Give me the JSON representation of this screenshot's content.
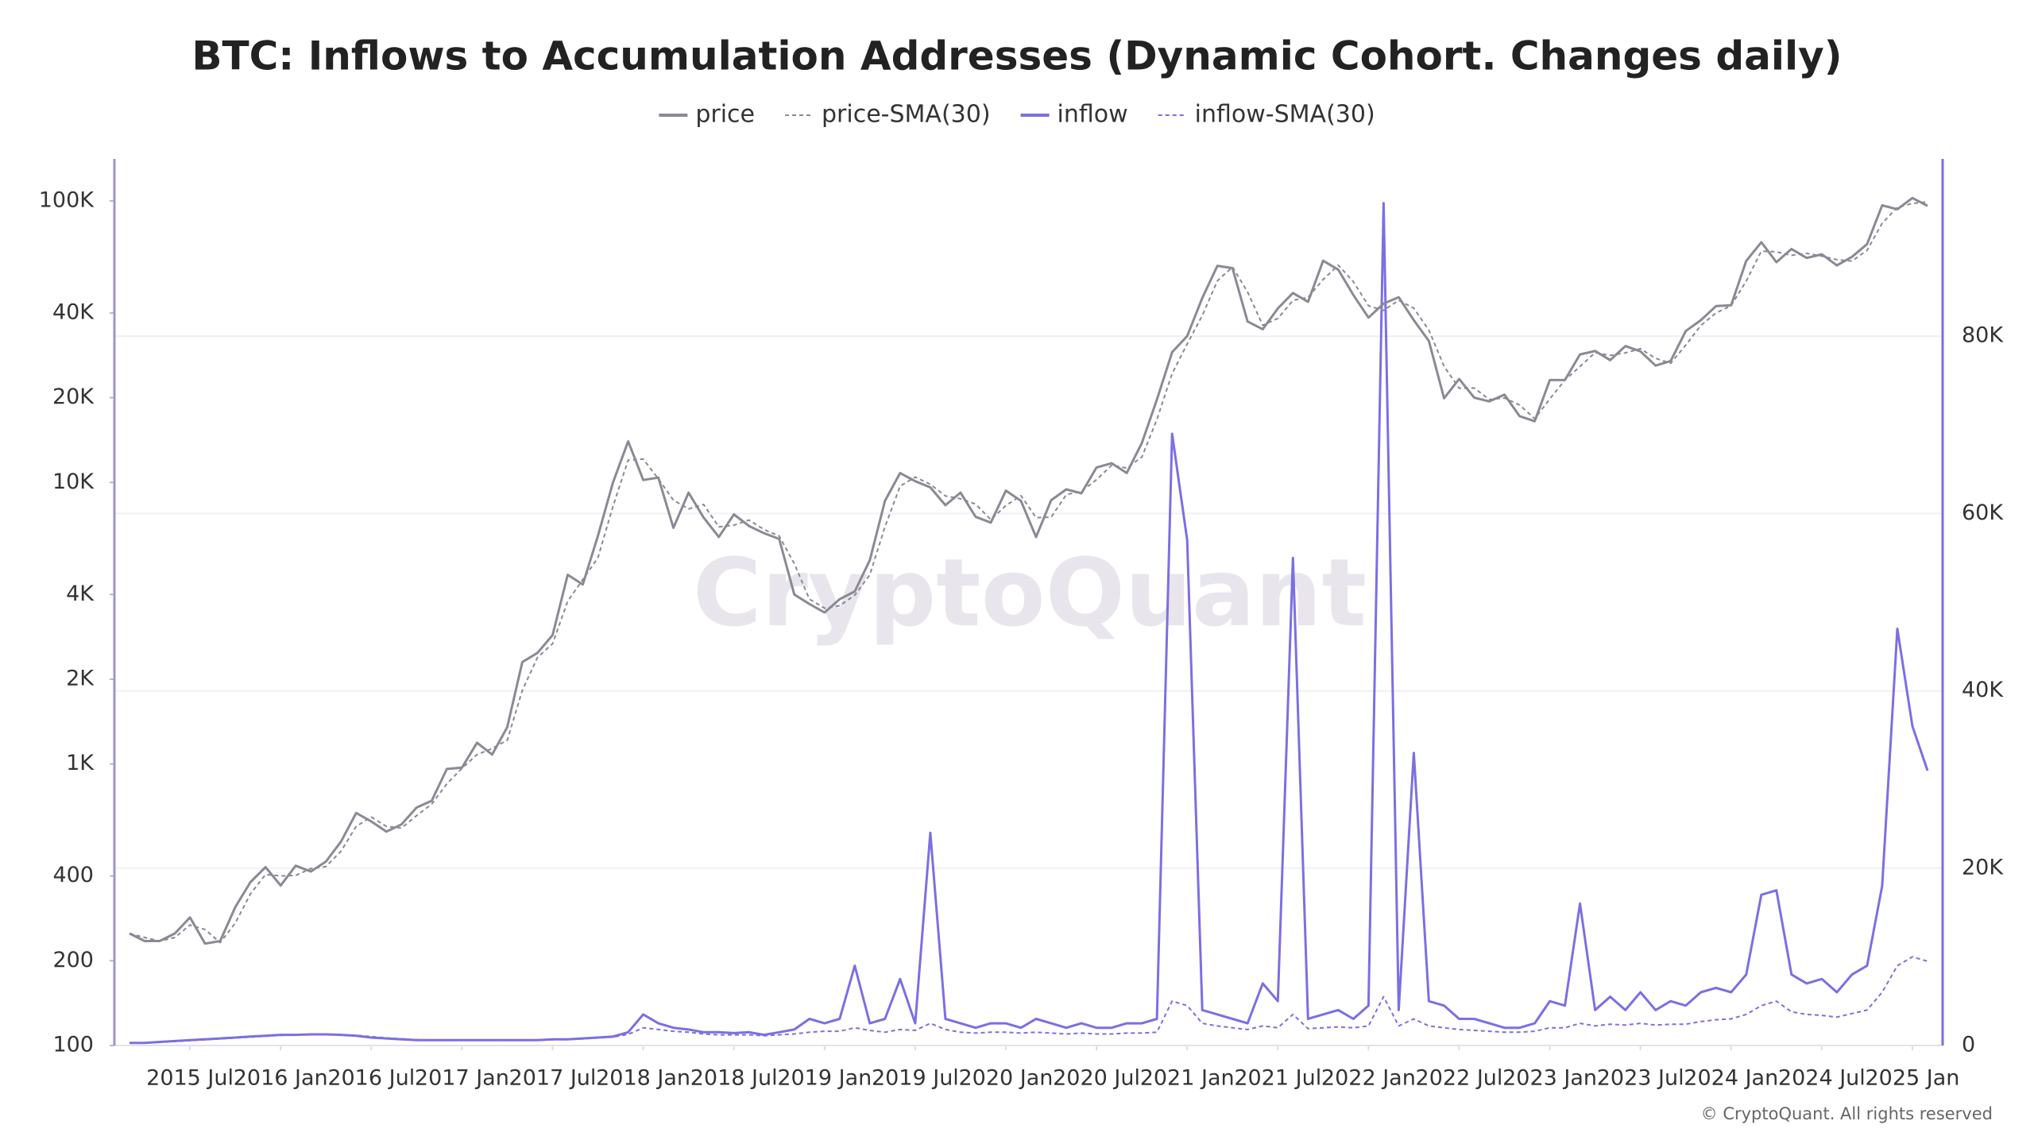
{
  "chart_data": {
    "type": "line",
    "title": "BTC: Inflows to Accumulation Addresses (Dynamic Cohort. Changes daily)",
    "watermark": "CryptoQuant",
    "footer": "© CryptoQuant. All rights reserved",
    "x": [
      "2015-03",
      "2015-04",
      "2015-05",
      "2015-06",
      "2015-07",
      "2015-08",
      "2015-09",
      "2015-10",
      "2015-11",
      "2015-12",
      "2016-01",
      "2016-02",
      "2016-03",
      "2016-04",
      "2016-05",
      "2016-06",
      "2016-07",
      "2016-08",
      "2016-09",
      "2016-10",
      "2016-11",
      "2016-12",
      "2017-01",
      "2017-02",
      "2017-03",
      "2017-04",
      "2017-05",
      "2017-06",
      "2017-07",
      "2017-08",
      "2017-09",
      "2017-10",
      "2017-11",
      "2017-12",
      "2018-01",
      "2018-02",
      "2018-03",
      "2018-04",
      "2018-05",
      "2018-06",
      "2018-07",
      "2018-08",
      "2018-09",
      "2018-10",
      "2018-11",
      "2018-12",
      "2019-01",
      "2019-02",
      "2019-03",
      "2019-04",
      "2019-05",
      "2019-06",
      "2019-07",
      "2019-08",
      "2019-09",
      "2019-10",
      "2019-11",
      "2019-12",
      "2020-01",
      "2020-02",
      "2020-03",
      "2020-04",
      "2020-05",
      "2020-06",
      "2020-07",
      "2020-08",
      "2020-09",
      "2020-10",
      "2020-11",
      "2020-12",
      "2021-01",
      "2021-02",
      "2021-03",
      "2021-04",
      "2021-05",
      "2021-06",
      "2021-07",
      "2021-08",
      "2021-09",
      "2021-10",
      "2021-11",
      "2021-12",
      "2022-01",
      "2022-02",
      "2022-03",
      "2022-04",
      "2022-05",
      "2022-06",
      "2022-07",
      "2022-08",
      "2022-09",
      "2022-10",
      "2022-11",
      "2022-12",
      "2023-01",
      "2023-02",
      "2023-03",
      "2023-04",
      "2023-05",
      "2023-06",
      "2023-07",
      "2023-08",
      "2023-09",
      "2023-10",
      "2023-11",
      "2023-12",
      "2024-01",
      "2024-02",
      "2024-03",
      "2024-04",
      "2024-05",
      "2024-06",
      "2024-07",
      "2024-08",
      "2024-09",
      "2024-10",
      "2024-11",
      "2024-12",
      "2025-01",
      "2025-02"
    ],
    "xlim": [
      "2015-02",
      "2025-03"
    ],
    "xticks": [
      {
        "value": "2015-07",
        "label": "2015 Jul"
      },
      {
        "value": "2016-01",
        "label": "2016 Jan"
      },
      {
        "value": "2016-07",
        "label": "2016 Jul"
      },
      {
        "value": "2017-01",
        "label": "2017 Jan"
      },
      {
        "value": "2017-07",
        "label": "2017 Jul"
      },
      {
        "value": "2018-01",
        "label": "2018 Jan"
      },
      {
        "value": "2018-07",
        "label": "2018 Jul"
      },
      {
        "value": "2019-01",
        "label": "2019 Jan"
      },
      {
        "value": "2019-07",
        "label": "2019 Jul"
      },
      {
        "value": "2020-01",
        "label": "2020 Jan"
      },
      {
        "value": "2020-07",
        "label": "2020 Jul"
      },
      {
        "value": "2021-01",
        "label": "2021 Jan"
      },
      {
        "value": "2021-07",
        "label": "2021 Jul"
      },
      {
        "value": "2022-01",
        "label": "2022 Jan"
      },
      {
        "value": "2022-07",
        "label": "2022 Jul"
      },
      {
        "value": "2023-01",
        "label": "2023 Jan"
      },
      {
        "value": "2023-07",
        "label": "2023 Jul"
      },
      {
        "value": "2024-01",
        "label": "2024 Jan"
      },
      {
        "value": "2024-07",
        "label": "2024 Jul"
      },
      {
        "value": "2025-01",
        "label": "2025 Jan"
      }
    ],
    "ylog": true,
    "ylim": [
      100,
      141000
    ],
    "yticks": [
      100,
      200,
      400,
      {
        "value": 1000,
        "label": "1K"
      },
      {
        "value": 2000,
        "label": "2K"
      },
      {
        "value": 4000,
        "label": "4K"
      },
      {
        "value": 10000,
        "label": "10K"
      },
      {
        "value": 20000,
        "label": "20K"
      },
      {
        "value": 40000,
        "label": "40K"
      },
      {
        "value": 100000,
        "label": "100K"
      }
    ],
    "y2lim": [
      0,
      100000
    ],
    "y2ticks": [
      0,
      {
        "value": 20000,
        "label": "20K"
      },
      {
        "value": 40000,
        "label": "40K"
      },
      {
        "value": 60000,
        "label": "60K"
      },
      {
        "value": 80000,
        "label": "80K"
      }
    ],
    "grid": true,
    "legend": "top",
    "series": [
      {
        "name": "price",
        "color": "#8a8994",
        "dash": false,
        "values": [
          250,
          235,
          235,
          250,
          285,
          230,
          235,
          310,
          380,
          430,
          370,
          435,
          415,
          450,
          530,
          670,
          625,
          575,
          610,
          700,
          740,
          960,
          970,
          1190,
          1080,
          1350,
          2300,
          2480,
          2870,
          4700,
          4340,
          6450,
          10000,
          14000,
          10200,
          10400,
          6900,
          9200,
          7500,
          6400,
          7700,
          7000,
          6600,
          6300,
          4000,
          3700,
          3450,
          3850,
          4100,
          5300,
          8600,
          10800,
          10100,
          9600,
          8300,
          9200,
          7550,
          7200,
          9350,
          8600,
          6400,
          8650,
          9450,
          9150,
          11300,
          11700,
          10800,
          13800,
          19700,
          29000,
          33100,
          45200,
          58800,
          57700,
          37300,
          35000,
          41500,
          47100,
          43800,
          61300,
          57000,
          46300,
          38500,
          43200,
          45500,
          37700,
          31800,
          19900,
          23300,
          20000,
          19400,
          20500,
          17200,
          16500,
          23100,
          23100,
          28500,
          29300,
          27200,
          30500,
          29200,
          26000,
          27000,
          34500,
          37700,
          42300,
          42600,
          61200,
          71300,
          60600,
          67500,
          62700,
          64600,
          59000,
          63300,
          70200,
          96400,
          93400,
          102400,
          96000
        ]
      },
      {
        "name": "price-SMA(30)",
        "color": "#8a8994",
        "dash": true,
        "values": [
          250,
          242,
          235,
          242,
          268,
          258,
          232,
          272,
          345,
          405,
          400,
          402,
          425,
          432,
          490,
          600,
          648,
          600,
          592,
          655,
          720,
          850,
          965,
          1080,
          1135,
          1215,
          1825,
          2390,
          2675,
          3785,
          4520,
          5395,
          8225,
          12000,
          12100,
          10300,
          8650,
          8050,
          8350,
          6950,
          7050,
          7350,
          6800,
          6450,
          5150,
          3850,
          3575,
          3650,
          3975,
          4700,
          6950,
          9700,
          10450,
          9850,
          8950,
          8750,
          8375,
          7375,
          8275,
          8975,
          7500,
          7525,
          9050,
          9300,
          10225,
          11500,
          11250,
          12300,
          16750,
          24350,
          31050,
          39150,
          52000,
          58250,
          47500,
          36150,
          38250,
          44300,
          45450,
          52550,
          59150,
          51650,
          42400,
          40850,
          44350,
          41600,
          34750,
          25850,
          21600,
          21650,
          19700,
          19950,
          18850,
          16850,
          19800,
          23100,
          25800,
          28900,
          28250,
          28850,
          29850,
          27600,
          26500,
          30750,
          36100,
          40000,
          42450,
          51900,
          66250,
          65950,
          64050,
          65100,
          63650,
          61800,
          61150,
          66750,
          83300,
          94900,
          97900,
          99200
        ]
      },
      {
        "name": "inflow",
        "color": "#7b6fe3",
        "dash": false,
        "axis": "y2",
        "values": [
          300,
          300,
          400,
          500,
          600,
          700,
          800,
          900,
          1000,
          1100,
          1200,
          1200,
          1250,
          1250,
          1200,
          1100,
          900,
          800,
          700,
          600,
          600,
          600,
          600,
          600,
          600,
          600,
          600,
          600,
          700,
          700,
          800,
          900,
          1000,
          1500,
          3500,
          2500,
          2000,
          1800,
          1500,
          1500,
          1400,
          1500,
          1200,
          1500,
          1800,
          3000,
          2500,
          3000,
          9000,
          2500,
          3000,
          7500,
          2500,
          24000,
          3000,
          2500,
          2000,
          2500,
          2500,
          2000,
          3000,
          2500,
          2000,
          2500,
          2000,
          2000,
          2500,
          2500,
          3000,
          69000,
          57000,
          4000,
          3500,
          3000,
          2500,
          7000,
          5000,
          55000,
          3000,
          3500,
          4000,
          3000,
          4500,
          95000,
          4000,
          33000,
          5000,
          4500,
          3000,
          3000,
          2500,
          2000,
          2000,
          2500,
          5000,
          4500,
          16000,
          4000,
          5500,
          4000,
          6000,
          4000,
          5000,
          4500,
          6000,
          6500,
          6000,
          8000,
          17000,
          17500,
          8000,
          7000,
          7500,
          6000,
          8000,
          9000,
          18000,
          47000,
          36000,
          31000
        ]
      },
      {
        "name": "inflow-SMA(30)",
        "color": "#7b6fe3",
        "dash": true,
        "axis": "y2",
        "values": [
          300,
          300,
          350,
          450,
          550,
          650,
          750,
          850,
          950,
          1050,
          1150,
          1200,
          1220,
          1250,
          1220,
          1150,
          1000,
          850,
          750,
          650,
          600,
          600,
          600,
          600,
          600,
          600,
          600,
          600,
          650,
          700,
          750,
          850,
          950,
          1250,
          2000,
          1800,
          1600,
          1500,
          1300,
          1200,
          1200,
          1200,
          1100,
          1200,
          1300,
          1500,
          1600,
          1600,
          2000,
          1700,
          1500,
          1800,
          1700,
          2500,
          1800,
          1500,
          1400,
          1500,
          1500,
          1400,
          1500,
          1400,
          1300,
          1400,
          1300,
          1300,
          1400,
          1400,
          1500,
          5000,
          4500,
          2500,
          2200,
          2000,
          1800,
          2200,
          2000,
          3500,
          1900,
          2000,
          2100,
          2000,
          2200,
          5500,
          2200,
          3000,
          2200,
          2000,
          1800,
          1700,
          1600,
          1500,
          1500,
          1600,
          2000,
          2000,
          2500,
          2200,
          2400,
          2300,
          2500,
          2300,
          2400,
          2400,
          2700,
          2900,
          3000,
          3500,
          4500,
          5000,
          3800,
          3500,
          3400,
          3200,
          3600,
          4000,
          6000,
          9000,
          10000,
          9500
        ]
      }
    ]
  }
}
